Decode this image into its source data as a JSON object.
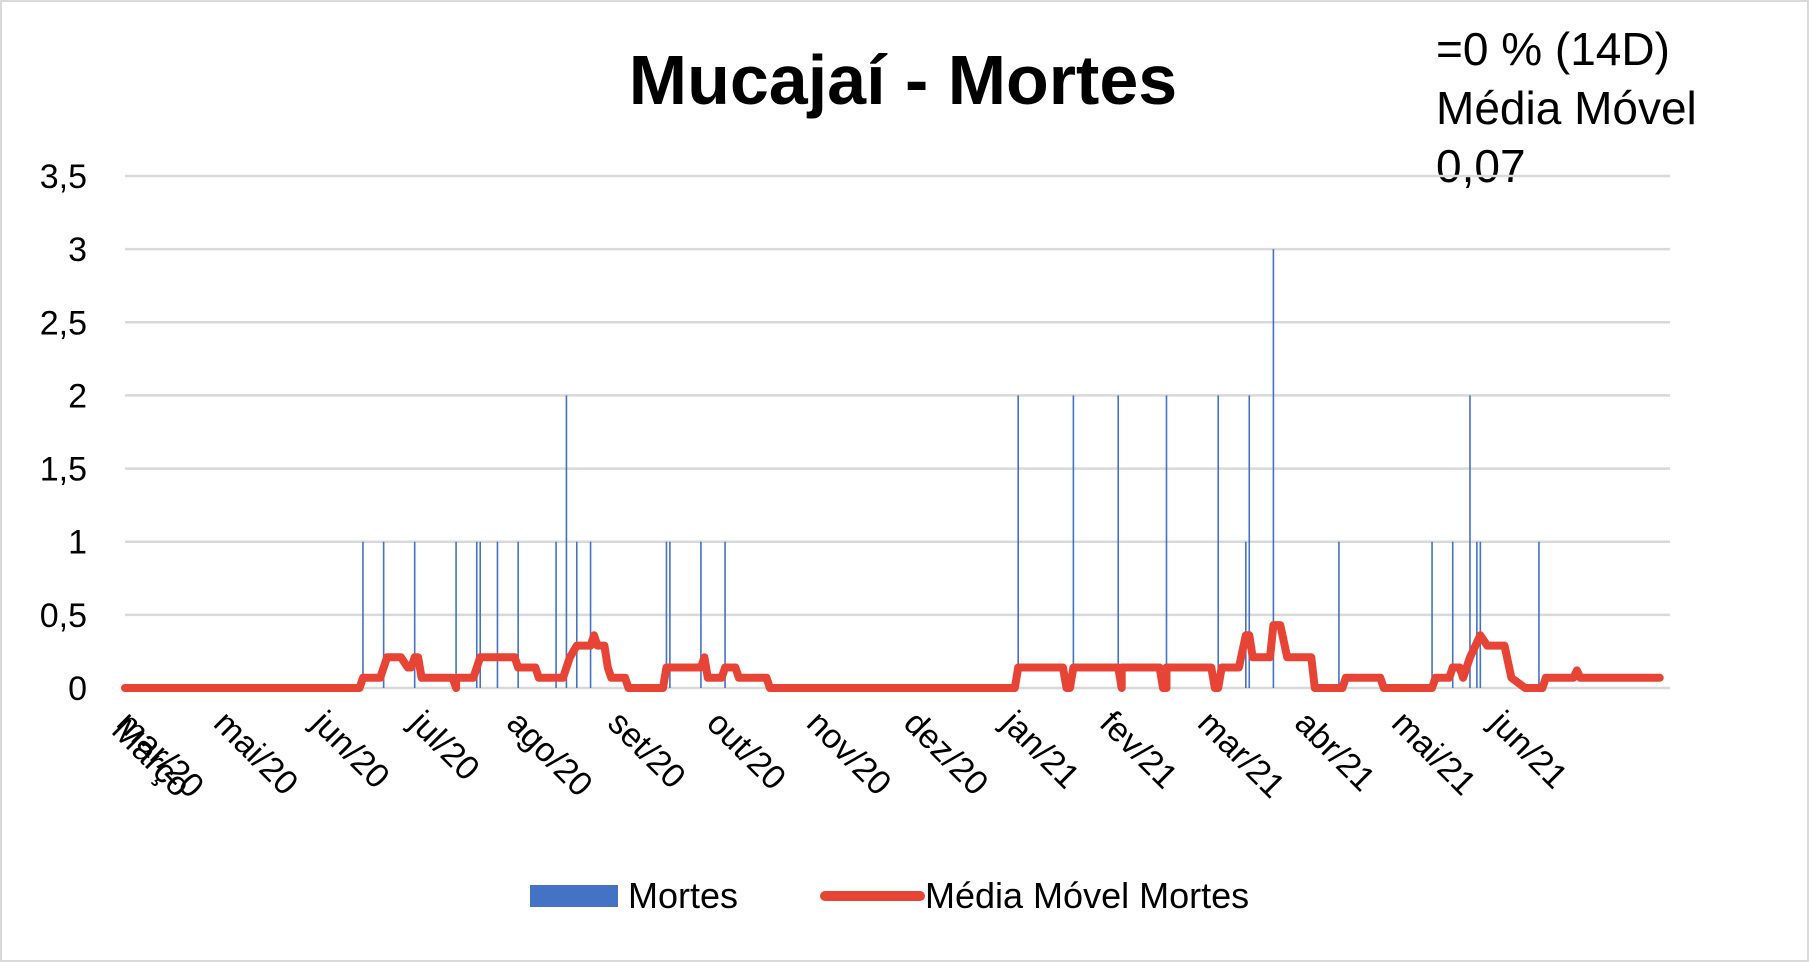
{
  "chart_data": {
    "type": "bar+line",
    "title": "Mucajaí - Mortes",
    "annotation": [
      "=0 % (14D)",
      "Média Móvel",
      "0,07"
    ],
    "y_ticks": [
      "0",
      "0,5",
      "1",
      "1,5",
      "2",
      "2,5",
      "3",
      "3,5"
    ],
    "ylim": [
      0,
      3.5
    ],
    "x_tick_labels": [
      "mar/20",
      "Março",
      "mai/20",
      "jun/20",
      "jul/20",
      "ago/20",
      "set/20",
      "out/20",
      "nov/20",
      "dez/20",
      "jan/21",
      "fev/21",
      "mar/21",
      "abr/21",
      "mai/21",
      "jun/21"
    ],
    "grid": true,
    "legend_position": "bottom",
    "series": [
      {
        "name": "Mortes",
        "kind": "bar",
        "color": "#4472C4",
        "points": [
          [
            "2020-05-18",
            1
          ],
          [
            "2020-05-24",
            1
          ],
          [
            "2020-06-02",
            1
          ],
          [
            "2020-06-14",
            1
          ],
          [
            "2020-06-20",
            1
          ],
          [
            "2020-06-21",
            1
          ],
          [
            "2020-06-26",
            1
          ],
          [
            "2020-07-02",
            1
          ],
          [
            "2020-07-13",
            1
          ],
          [
            "2020-07-16",
            2
          ],
          [
            "2020-07-19",
            1
          ],
          [
            "2020-07-23",
            1
          ],
          [
            "2020-08-14",
            1
          ],
          [
            "2020-08-15",
            1
          ],
          [
            "2020-08-24",
            1
          ],
          [
            "2020-08-31",
            1
          ],
          [
            "2020-11-24",
            2
          ],
          [
            "2020-12-10",
            2
          ],
          [
            "2020-12-23",
            2
          ],
          [
            "2021-01-06",
            2
          ],
          [
            "2021-01-21",
            2
          ],
          [
            "2021-01-29",
            1
          ],
          [
            "2021-01-30",
            2
          ],
          [
            "2021-02-06",
            3
          ],
          [
            "2021-02-25",
            1
          ],
          [
            "2021-03-24",
            1
          ],
          [
            "2021-03-30",
            1
          ],
          [
            "2021-04-04",
            2
          ],
          [
            "2021-04-06",
            1
          ],
          [
            "2021-04-07",
            1
          ],
          [
            "2021-04-24",
            1
          ]
        ]
      },
      {
        "name": "Média Móvel Mortes",
        "kind": "line",
        "color": "#E84435",
        "points": [
          [
            "2020-03-10",
            0
          ],
          [
            "2020-05-17",
            0
          ],
          [
            "2020-05-18",
            0.07
          ],
          [
            "2020-05-23",
            0.07
          ],
          [
            "2020-05-25",
            0.21
          ],
          [
            "2020-05-29",
            0.21
          ],
          [
            "2020-05-31",
            0.14
          ],
          [
            "2020-06-01",
            0.14
          ],
          [
            "2020-06-02",
            0.21
          ],
          [
            "2020-06-03",
            0.21
          ],
          [
            "2020-06-04",
            0.07
          ],
          [
            "2020-06-13",
            0.07
          ],
          [
            "2020-06-14",
            0
          ],
          [
            "2020-06-14",
            0.07
          ],
          [
            "2020-06-19",
            0.07
          ],
          [
            "2020-06-21",
            0.21
          ],
          [
            "2020-07-01",
            0.21
          ],
          [
            "2020-07-02",
            0.14
          ],
          [
            "2020-07-07",
            0.14
          ],
          [
            "2020-07-08",
            0.07
          ],
          [
            "2020-07-15",
            0.07
          ],
          [
            "2020-07-17",
            0.21
          ],
          [
            "2020-07-19",
            0.29
          ],
          [
            "2020-07-23",
            0.29
          ],
          [
            "2020-07-24",
            0.36
          ],
          [
            "2020-07-25",
            0.29
          ],
          [
            "2020-07-27",
            0.29
          ],
          [
            "2020-07-28",
            0.14
          ],
          [
            "2020-07-29",
            0.07
          ],
          [
            "2020-08-02",
            0.07
          ],
          [
            "2020-08-03",
            0
          ],
          [
            "2020-08-13",
            0
          ],
          [
            "2020-08-14",
            0.14
          ],
          [
            "2020-08-24",
            0.14
          ],
          [
            "2020-08-25",
            0.21
          ],
          [
            "2020-08-26",
            0.07
          ],
          [
            "2020-08-30",
            0.07
          ],
          [
            "2020-08-31",
            0.14
          ],
          [
            "2020-09-03",
            0.14
          ],
          [
            "2020-09-04",
            0.07
          ],
          [
            "2020-09-12",
            0.07
          ],
          [
            "2020-09-13",
            0
          ],
          [
            "2020-11-23",
            0
          ],
          [
            "2020-11-24",
            0.14
          ],
          [
            "2020-12-07",
            0.14
          ],
          [
            "2020-12-08",
            0
          ],
          [
            "2020-12-09",
            0
          ],
          [
            "2020-12-10",
            0.14
          ],
          [
            "2020-12-23",
            0.14
          ],
          [
            "2020-12-24",
            0
          ],
          [
            "2020-12-24",
            0.14
          ],
          [
            "2021-01-04",
            0.14
          ],
          [
            "2021-01-05",
            0
          ],
          [
            "2021-01-06",
            0
          ],
          [
            "2021-01-06",
            0.14
          ],
          [
            "2021-01-19",
            0.14
          ],
          [
            "2021-01-20",
            0
          ],
          [
            "2021-01-21",
            0
          ],
          [
            "2021-01-22",
            0.14
          ],
          [
            "2021-01-27",
            0.14
          ],
          [
            "2021-01-29",
            0.36
          ],
          [
            "2021-01-30",
            0.36
          ],
          [
            "2021-01-31",
            0.21
          ],
          [
            "2021-02-05",
            0.21
          ],
          [
            "2021-02-06",
            0.43
          ],
          [
            "2021-02-08",
            0.43
          ],
          [
            "2021-02-10",
            0.21
          ],
          [
            "2021-02-17",
            0.21
          ],
          [
            "2021-02-18",
            0
          ],
          [
            "2021-02-26",
            0
          ],
          [
            "2021-02-27",
            0.07
          ],
          [
            "2021-03-09",
            0.07
          ],
          [
            "2021-03-10",
            0
          ],
          [
            "2021-03-24",
            0
          ],
          [
            "2021-03-25",
            0.07
          ],
          [
            "2021-03-29",
            0.07
          ],
          [
            "2021-03-30",
            0.14
          ],
          [
            "2021-04-01",
            0.14
          ],
          [
            "2021-04-02",
            0.07
          ],
          [
            "2021-04-04",
            0.21
          ],
          [
            "2021-04-07",
            0.36
          ],
          [
            "2021-04-09",
            0.29
          ],
          [
            "2021-04-14",
            0.29
          ],
          [
            "2021-04-16",
            0.07
          ],
          [
            "2021-04-20",
            0
          ],
          [
            "2021-04-25",
            0
          ],
          [
            "2021-04-26",
            0.07
          ],
          [
            "2021-05-04",
            0.07
          ],
          [
            "2021-05-05",
            0.12
          ],
          [
            "2021-05-06",
            0.07
          ],
          [
            "2021-05-29",
            0.07
          ]
        ]
      }
    ]
  }
}
